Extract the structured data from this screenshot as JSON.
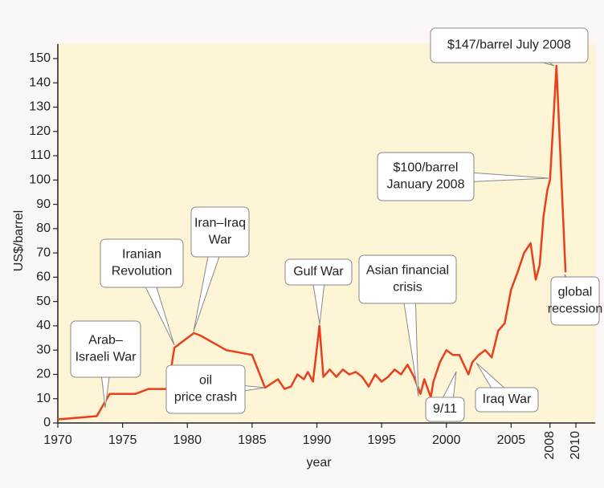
{
  "chart_data": {
    "type": "line",
    "xlabel": "year",
    "ylabel": "US$/barrel",
    "x": [
      1970,
      1973,
      1974,
      1976,
      1977,
      1978.5,
      1979,
      1980.5,
      1981,
      1983,
      1985,
      1986,
      1987,
      1987.5,
      1988,
      1988.5,
      1989,
      1989.3,
      1989.7,
      1990.2,
      1990.5,
      1991,
      1991.5,
      1992,
      1992.5,
      1993,
      1993.5,
      1994,
      1994.5,
      1995,
      1995.5,
      1996,
      1996.5,
      1997,
      1997.5,
      1998,
      1998.3,
      1998.8,
      1999,
      1999.5,
      2000,
      2000.5,
      2001,
      2001.7,
      2002,
      2002.5,
      2003,
      2003.5,
      2004,
      2004.5,
      2005,
      2005.5,
      2006,
      2006.5,
      2006.9,
      2007.2,
      2007.5,
      2007.8,
      2008,
      2008.5,
      2009.2
    ],
    "values": [
      1.5,
      2.8,
      12,
      12,
      14,
      14,
      31,
      37,
      36,
      30,
      28,
      14.5,
      18,
      14,
      15,
      20,
      18,
      21,
      17,
      40,
      19,
      22,
      19,
      22,
      20,
      21,
      19,
      15,
      20,
      17,
      19,
      22,
      20,
      24,
      19,
      12,
      18,
      10.5,
      17,
      25,
      30,
      28,
      28,
      20,
      25,
      28,
      30,
      27,
      38,
      41,
      55,
      62,
      70,
      74,
      59,
      65,
      85,
      96,
      100,
      147,
      62
    ],
    "color": "#e8401c",
    "xlim": [
      1970,
      2011.5
    ],
    "ylim": [
      0,
      156
    ],
    "xticks": [
      1970,
      1975,
      1980,
      1985,
      1990,
      1995,
      2000,
      2005,
      2008,
      2010
    ],
    "yticks": [
      0,
      10,
      20,
      30,
      40,
      50,
      60,
      70,
      80,
      90,
      100,
      110,
      120,
      130,
      140,
      150
    ],
    "annotations": [
      {
        "lines": [
          "Arab–",
          "Israeli War"
        ]
      },
      {
        "lines": [
          "Iranian",
          "Revolution"
        ]
      },
      {
        "lines": [
          "Iran–Iraq",
          "War"
        ]
      },
      {
        "lines": [
          "oil",
          "price crash"
        ]
      },
      {
        "lines": [
          "Gulf War"
        ]
      },
      {
        "lines": [
          "Asian financial",
          "crisis"
        ]
      },
      {
        "lines": [
          "9/11"
        ]
      },
      {
        "lines": [
          "Iraq War"
        ]
      },
      {
        "lines": [
          "$100/barrel",
          "January 2008"
        ]
      },
      {
        "lines": [
          "$147/barrel July 2008"
        ]
      },
      {
        "lines": [
          "global",
          "recession"
        ]
      }
    ]
  }
}
